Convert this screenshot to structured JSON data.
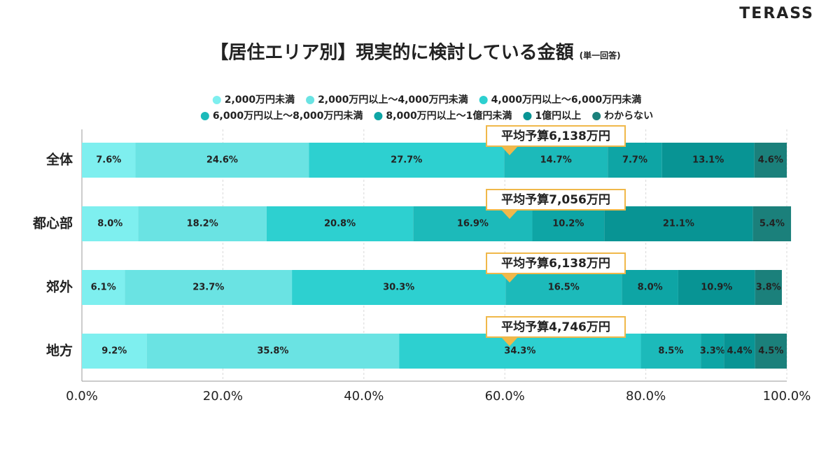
{
  "brand": "TERASS",
  "chart_data": {
    "type": "stacked-bar-horizontal",
    "title": "【居住エリア別】現実的に検討している金額",
    "subtitle": "(単一回答)",
    "categories": [
      "全体",
      "都心部",
      "郊外",
      "地方"
    ],
    "annotations": [
      "平均予算6,138万円",
      "平均予算7,056万円",
      "平均予算6,138万円",
      "平均予算4,746万円"
    ],
    "series": [
      {
        "name": "2,000万円未満",
        "color": "#7eefef",
        "values": [
          7.6,
          8.0,
          6.1,
          9.2
        ],
        "value_labels": [
          "7.6%",
          "8.0%",
          "6.1%",
          "9.2%"
        ]
      },
      {
        "name": "2,000万円以上～4,000万円未満",
        "color": "#6ae3e3",
        "values": [
          24.6,
          18.2,
          23.7,
          35.8
        ],
        "value_labels": [
          "24.6%",
          "18.2%",
          "23.7%",
          "35.8%"
        ]
      },
      {
        "name": "4,000万円以上～6,000万円未満",
        "color": "#2dd0d0",
        "values": [
          27.7,
          20.8,
          30.3,
          34.3
        ],
        "value_labels": [
          "27.7%",
          "20.8%",
          "30.3%",
          "34.3%"
        ]
      },
      {
        "name": "6,000万円以上～8,000万円未満",
        "color": "#1cbaba",
        "values": [
          14.7,
          16.9,
          16.5,
          8.5
        ],
        "value_labels": [
          "14.7%",
          "16.9%",
          "16.5%",
          "8.5%"
        ]
      },
      {
        "name": "8,000万円以上～1億円未満",
        "color": "#0ea5a5",
        "values": [
          7.7,
          10.2,
          8.0,
          3.3
        ],
        "value_labels": [
          "7.7%",
          "10.2%",
          "8.0%",
          "3.3%"
        ]
      },
      {
        "name": "1億円以上",
        "color": "#089494",
        "values": [
          13.1,
          21.1,
          10.9,
          4.4
        ],
        "value_labels": [
          "13.1%",
          "21.1%",
          "10.9%",
          "4.4%"
        ]
      },
      {
        "name": "わからない",
        "color": "#1b807b",
        "values": [
          4.6,
          5.4,
          3.8,
          4.5
        ],
        "value_labels": [
          "4.6%",
          "5.4%",
          "3.8%",
          "4.5%"
        ]
      }
    ],
    "xlim": [
      0,
      100
    ],
    "xticks": [
      {
        "value": 0,
        "label": "0.0%"
      },
      {
        "value": 20,
        "label": "20.0%"
      },
      {
        "value": 40,
        "label": "40.0%"
      },
      {
        "value": 60,
        "label": "60.0%"
      },
      {
        "value": 80,
        "label": "80.0%"
      },
      {
        "value": 100,
        "label": "100.0%"
      }
    ],
    "grid": true
  }
}
